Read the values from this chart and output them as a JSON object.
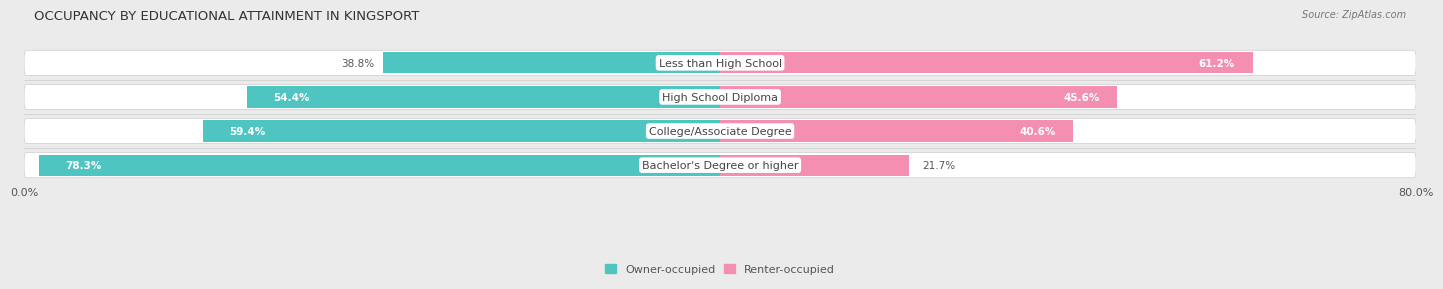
{
  "title": "OCCUPANCY BY EDUCATIONAL ATTAINMENT IN KINGSPORT",
  "source": "Source: ZipAtlas.com",
  "categories": [
    "Less than High School",
    "High School Diploma",
    "College/Associate Degree",
    "Bachelor's Degree or higher"
  ],
  "owner_values": [
    38.8,
    54.4,
    59.4,
    78.3
  ],
  "renter_values": [
    61.2,
    45.6,
    40.6,
    21.7
  ],
  "owner_color": "#4EC5C1",
  "renter_color": "#F48FB1",
  "background_color": "#ebebeb",
  "bar_bg_color": "#ffffff",
  "bar_height": 0.62,
  "xlim_left": -80,
  "xlim_right": 80,
  "title_fontsize": 9.5,
  "label_fontsize": 8,
  "value_fontsize": 7.5,
  "source_fontsize": 7,
  "legend_fontsize": 8,
  "x_tick_label_left": "0.0%",
  "x_tick_label_right": "80.0%"
}
